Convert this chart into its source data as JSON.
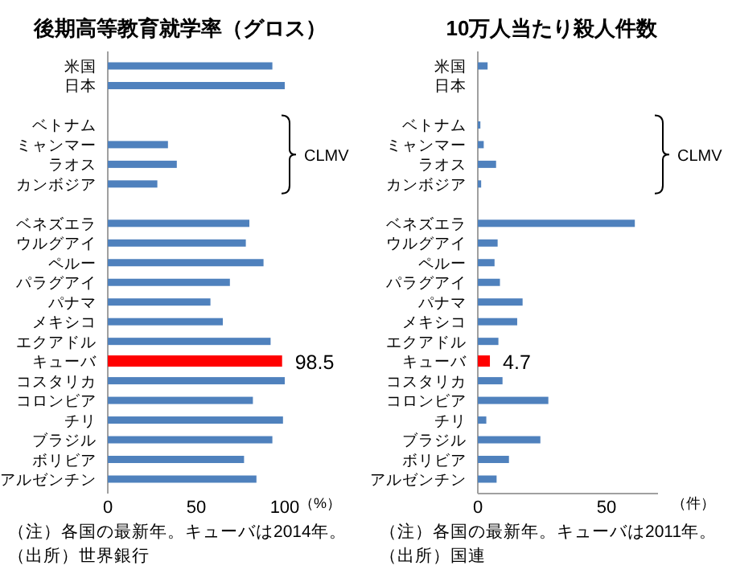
{
  "chart_data": [
    {
      "type": "bar",
      "orientation": "horizontal",
      "title": "後期高等教育就学率（グロス）",
      "xlabel": "（%）",
      "categories": [
        "米国",
        "日本",
        null,
        "ベトナム",
        "ミャンマー",
        "ラオス",
        "カンボジア",
        null,
        "ベネズエラ",
        "ウルグアイ",
        "ペルー",
        "パラグアイ",
        "パナマ",
        "メキシコ",
        "エクアドル",
        "キューバ",
        "コスタリカ",
        "コロンビア",
        "チリ",
        "ブラジル",
        "ボリビア",
        "アルゼンチン"
      ],
      "values": [
        93,
        100,
        null,
        null,
        34,
        39,
        28,
        null,
        80,
        78,
        88,
        69,
        58,
        65,
        92,
        98.5,
        100,
        82,
        99,
        93,
        77,
        84
      ],
      "colors": [
        "#4f81bd",
        "#4f81bd",
        null,
        null,
        "#4f81bd",
        "#4f81bd",
        "#4f81bd",
        null,
        "#4f81bd",
        "#4f81bd",
        "#4f81bd",
        "#4f81bd",
        "#4f81bd",
        "#4f81bd",
        "#4f81bd",
        "#ff0000",
        "#4f81bd",
        "#4f81bd",
        "#4f81bd",
        "#4f81bd",
        "#4f81bd",
        "#4f81bd"
      ],
      "value_labels": [
        null,
        null,
        null,
        null,
        null,
        null,
        null,
        null,
        null,
        null,
        null,
        null,
        null,
        null,
        null,
        "98.5",
        null,
        null,
        null,
        null,
        null,
        null
      ],
      "xlim": [
        0,
        100
      ],
      "xticks": [
        0,
        50,
        100
      ],
      "annotations": [
        "CLMV",
        "（注）各国の最新年。キューバは2014年。",
        "（出所）世界銀行"
      ]
    },
    {
      "type": "bar",
      "orientation": "horizontal",
      "title": "10万人当たり殺人件数",
      "xlabel": "（件）",
      "categories": [
        "米国",
        "日本",
        null,
        "ベトナム",
        "ミャンマー",
        "ラオス",
        "カンボジア",
        null,
        "ベネズエラ",
        "ウルグアイ",
        "ペルー",
        "パラグアイ",
        "パナマ",
        "メキシコ",
        "エクアドル",
        "キューバ",
        "コスタリカ",
        "コロンビア",
        "チリ",
        "ブラジル",
        "ボリビア",
        "アルゼンチン"
      ],
      "values": [
        3.8,
        null,
        null,
        1,
        2.3,
        7.1,
        1.3,
        null,
        61,
        7.7,
        6.5,
        8.6,
        17.4,
        15.3,
        8,
        4.7,
        9.6,
        27.4,
        3.3,
        24.3,
        12.1,
        7.3
      ],
      "colors": [
        "#4f81bd",
        null,
        null,
        "#4f81bd",
        "#4f81bd",
        "#4f81bd",
        "#4f81bd",
        null,
        "#4f81bd",
        "#4f81bd",
        "#4f81bd",
        "#4f81bd",
        "#4f81bd",
        "#4f81bd",
        "#4f81bd",
        "#ff0000",
        "#4f81bd",
        "#4f81bd",
        "#4f81bd",
        "#4f81bd",
        "#4f81bd",
        "#4f81bd"
      ],
      "value_labels": [
        null,
        null,
        null,
        null,
        null,
        null,
        null,
        null,
        null,
        null,
        null,
        null,
        null,
        null,
        null,
        "4.7",
        null,
        null,
        null,
        null,
        null,
        null
      ],
      "xlim": [
        0,
        70
      ],
      "xticks": [
        0,
        50
      ],
      "annotations": [
        "CLMV",
        "（注）各国の最新年。キューバは2011年。",
        "（出所）国連"
      ]
    }
  ]
}
